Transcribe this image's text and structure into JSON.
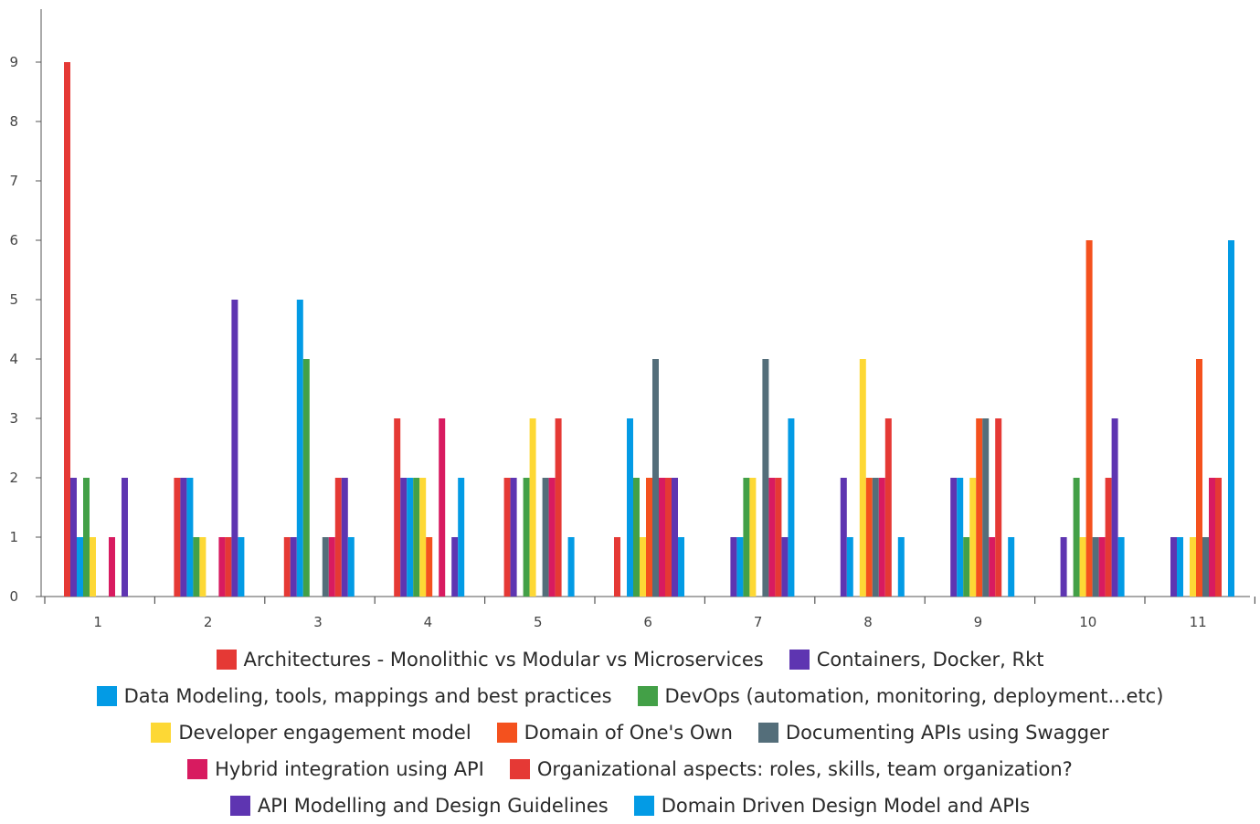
{
  "chart_data": {
    "type": "bar",
    "title": "",
    "xlabel": "",
    "ylabel": "",
    "ylim": [
      0,
      10
    ],
    "yticks": [
      0,
      1,
      2,
      3,
      4,
      5,
      6,
      7,
      8,
      9
    ],
    "grid": false,
    "legend_position": "bottom",
    "categories": [
      "1",
      "2",
      "3",
      "4",
      "5",
      "6",
      "7",
      "8",
      "9",
      "10",
      "11"
    ],
    "series": [
      {
        "name": "Architectures - Monolithic vs Modular vs Microservices",
        "color": "#e53935",
        "values": [
          9,
          2,
          1,
          3,
          2,
          1,
          0,
          0,
          0,
          0,
          0
        ]
      },
      {
        "name": "Containers, Docker, Rkt",
        "color": "#5e35b1",
        "values": [
          2,
          2,
          1,
          2,
          2,
          0,
          1,
          2,
          2,
          1,
          1
        ]
      },
      {
        "name": "Data Modeling, tools, mappings and best practices",
        "color": "#039be5",
        "values": [
          1,
          2,
          5,
          2,
          0,
          3,
          1,
          1,
          2,
          0,
          1
        ]
      },
      {
        "name": "DevOps (automation, monitoring, deployment...etc)",
        "color": "#43a047",
        "values": [
          2,
          1,
          4,
          2,
          2,
          2,
          2,
          0,
          1,
          2,
          0
        ]
      },
      {
        "name": "Developer engagement model",
        "color": "#fdd835",
        "values": [
          1,
          1,
          0,
          2,
          3,
          1,
          2,
          4,
          2,
          1,
          1
        ]
      },
      {
        "name": "Domain of One's Own",
        "color": "#f4511e",
        "values": [
          0,
          0,
          0,
          1,
          0,
          2,
          0,
          2,
          3,
          6,
          4
        ]
      },
      {
        "name": "Documenting APIs using Swagger",
        "color": "#546e7a",
        "values": [
          0,
          0,
          1,
          0,
          2,
          4,
          4,
          2,
          3,
          1,
          1
        ]
      },
      {
        "name": "Hybrid integration using API",
        "color": "#d81b60",
        "values": [
          1,
          1,
          1,
          3,
          2,
          2,
          2,
          2,
          1,
          1,
          2
        ]
      },
      {
        "name": "Organizational aspects: roles, skills, team organization?",
        "color": "#e53935",
        "values": [
          0,
          1,
          2,
          0,
          3,
          2,
          2,
          3,
          3,
          2,
          2
        ]
      },
      {
        "name": "API Modelling and Design Guidelines",
        "color": "#5e35b1",
        "values": [
          2,
          5,
          2,
          1,
          0,
          2,
          1,
          0,
          0,
          3,
          0
        ]
      },
      {
        "name": "Domain Driven Design Model and APIs",
        "color": "#039be5",
        "values": [
          0,
          1,
          1,
          2,
          1,
          1,
          3,
          1,
          1,
          1,
          6
        ]
      }
    ]
  }
}
